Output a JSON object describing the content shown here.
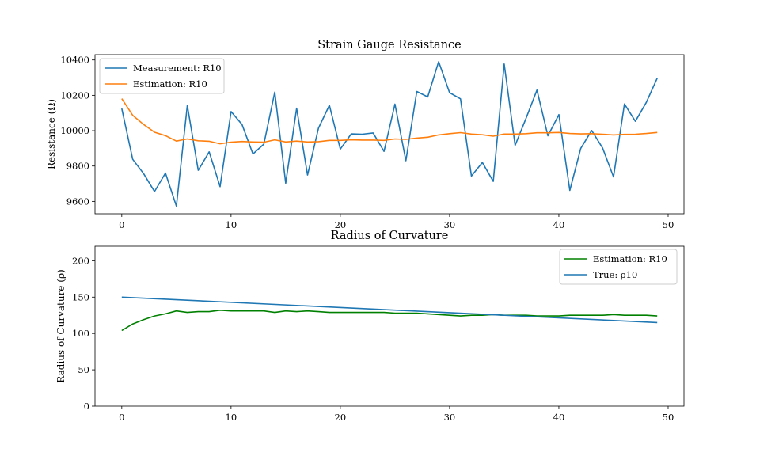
{
  "chart_data": [
    {
      "type": "line",
      "title": "Strain Gauge Resistance",
      "xlabel": "",
      "ylabel": "Resistance (Ω)",
      "xlim": [
        -2.45,
        51.45
      ],
      "ylim": [
        9530,
        10430
      ],
      "xticks": [
        "0",
        "10",
        "20",
        "30",
        "40",
        "50"
      ],
      "xtick_values": [
        0,
        10,
        20,
        30,
        40,
        50
      ],
      "yticks": [
        "9600",
        "9800",
        "10000",
        "10200",
        "10400"
      ],
      "ytick_values": [
        9600,
        9800,
        10000,
        10200,
        10400
      ],
      "legend_position": "top-left",
      "series": [
        {
          "name": "Measurement: R10",
          "color": "#1f77b4",
          "x": [
            0,
            1,
            2,
            3,
            4,
            5,
            6,
            7,
            8,
            9,
            10,
            11,
            12,
            13,
            14,
            15,
            16,
            17,
            18,
            19,
            20,
            21,
            22,
            23,
            24,
            25,
            26,
            27,
            28,
            29,
            30,
            31,
            32,
            33,
            34,
            35,
            36,
            37,
            38,
            39,
            40,
            41,
            42,
            43,
            44,
            45,
            46,
            47,
            48,
            49
          ],
          "y": [
            10125,
            9838,
            9757,
            9656,
            9760,
            9573,
            10143,
            9776,
            9880,
            9683,
            10108,
            10035,
            9868,
            9924,
            10218,
            9703,
            10127,
            9749,
            10014,
            10144,
            9896,
            9982,
            9980,
            9987,
            9883,
            10150,
            9830,
            10222,
            10191,
            10390,
            10215,
            10180,
            9743,
            9820,
            9713,
            10377,
            9917,
            10070,
            10230,
            9971,
            10091,
            9662,
            9900,
            10001,
            9902,
            9738,
            10151,
            10053,
            10160,
            10297
          ]
        },
        {
          "name": "Estimation: R10",
          "color": "#ff7f0e",
          "x": [
            0,
            1,
            2,
            3,
            4,
            5,
            6,
            7,
            8,
            9,
            10,
            11,
            12,
            13,
            14,
            15,
            16,
            17,
            18,
            19,
            20,
            21,
            22,
            23,
            24,
            25,
            26,
            27,
            28,
            29,
            30,
            31,
            32,
            33,
            34,
            35,
            36,
            37,
            38,
            39,
            40,
            41,
            42,
            43,
            44,
            45,
            46,
            47,
            48,
            49
          ],
          "y": [
            10181,
            10087,
            10035,
            9991,
            9972,
            9941,
            9953,
            9943,
            9940,
            9926,
            9935,
            9939,
            9936,
            9935,
            9948,
            9936,
            9941,
            9936,
            9938,
            9945,
            9945,
            9948,
            9947,
            9947,
            9945,
            9953,
            9951,
            9958,
            9963,
            9976,
            9983,
            9989,
            9981,
            9977,
            9969,
            9981,
            9981,
            9983,
            9988,
            9988,
            9990,
            9984,
            9982,
            9983,
            9980,
            9976,
            9979,
            9980,
            9984,
            9990
          ]
        }
      ]
    },
    {
      "type": "line",
      "title": "Radius of Curvature",
      "xlabel": "",
      "ylabel": "Radius of Curvature (ρ)",
      "xlim": [
        -2.45,
        51.45
      ],
      "ylim": [
        0,
        220
      ],
      "xticks": [
        "0",
        "10",
        "20",
        "30",
        "40",
        "50"
      ],
      "xtick_values": [
        0,
        10,
        20,
        30,
        40,
        50
      ],
      "yticks": [
        "0",
        "50",
        "100",
        "150",
        "200"
      ],
      "ytick_values": [
        0,
        50,
        100,
        150,
        200
      ],
      "legend_position": "top-right",
      "series": [
        {
          "name": "Estimation: R10",
          "color": "#008000",
          "x": [
            0,
            1,
            2,
            3,
            4,
            5,
            6,
            7,
            8,
            9,
            10,
            11,
            12,
            13,
            14,
            15,
            16,
            17,
            18,
            19,
            20,
            21,
            22,
            23,
            24,
            25,
            26,
            27,
            28,
            29,
            30,
            31,
            32,
            33,
            34,
            35,
            36,
            37,
            38,
            39,
            40,
            41,
            42,
            43,
            44,
            45,
            46,
            47,
            48,
            49
          ],
          "y": [
            104,
            113,
            119,
            124,
            127,
            131,
            129,
            130,
            130,
            132,
            131,
            131,
            131,
            131,
            129,
            131,
            130,
            131,
            130,
            129,
            129,
            129,
            129,
            129,
            129,
            128,
            128,
            128,
            127,
            126,
            125,
            124,
            125,
            125,
            126,
            125,
            125,
            125,
            124,
            124,
            124,
            125,
            125,
            125,
            125,
            126,
            125,
            125,
            125,
            124
          ]
        },
        {
          "name": "True: ρ10",
          "color": "#1f77b4",
          "x": [
            0,
            49
          ],
          "y": [
            150,
            115
          ]
        }
      ]
    }
  ]
}
